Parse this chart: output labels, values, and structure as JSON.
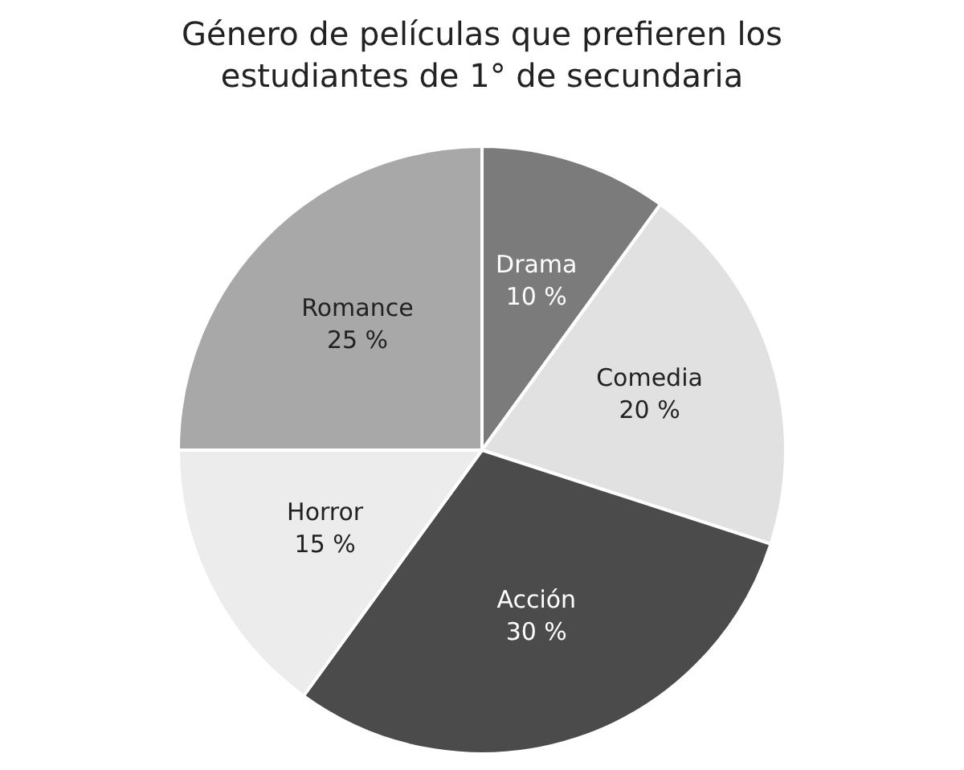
{
  "chart_data": {
    "type": "pie",
    "title": "Género de películas que prefieren los estudiantes de 1° de secundaria",
    "categories": [
      "Drama",
      "Comedia",
      "Acción",
      "Horror",
      "Romance"
    ],
    "values": [
      10,
      20,
      30,
      15,
      25
    ],
    "value_labels": [
      "10 %",
      "20 %",
      "30 %",
      "15 %",
      "25 %"
    ],
    "colors": [
      "#7b7b7b",
      "#e1e1e1",
      "#4b4b4b",
      "#ececec",
      "#a8a8a8"
    ],
    "legend": false
  }
}
